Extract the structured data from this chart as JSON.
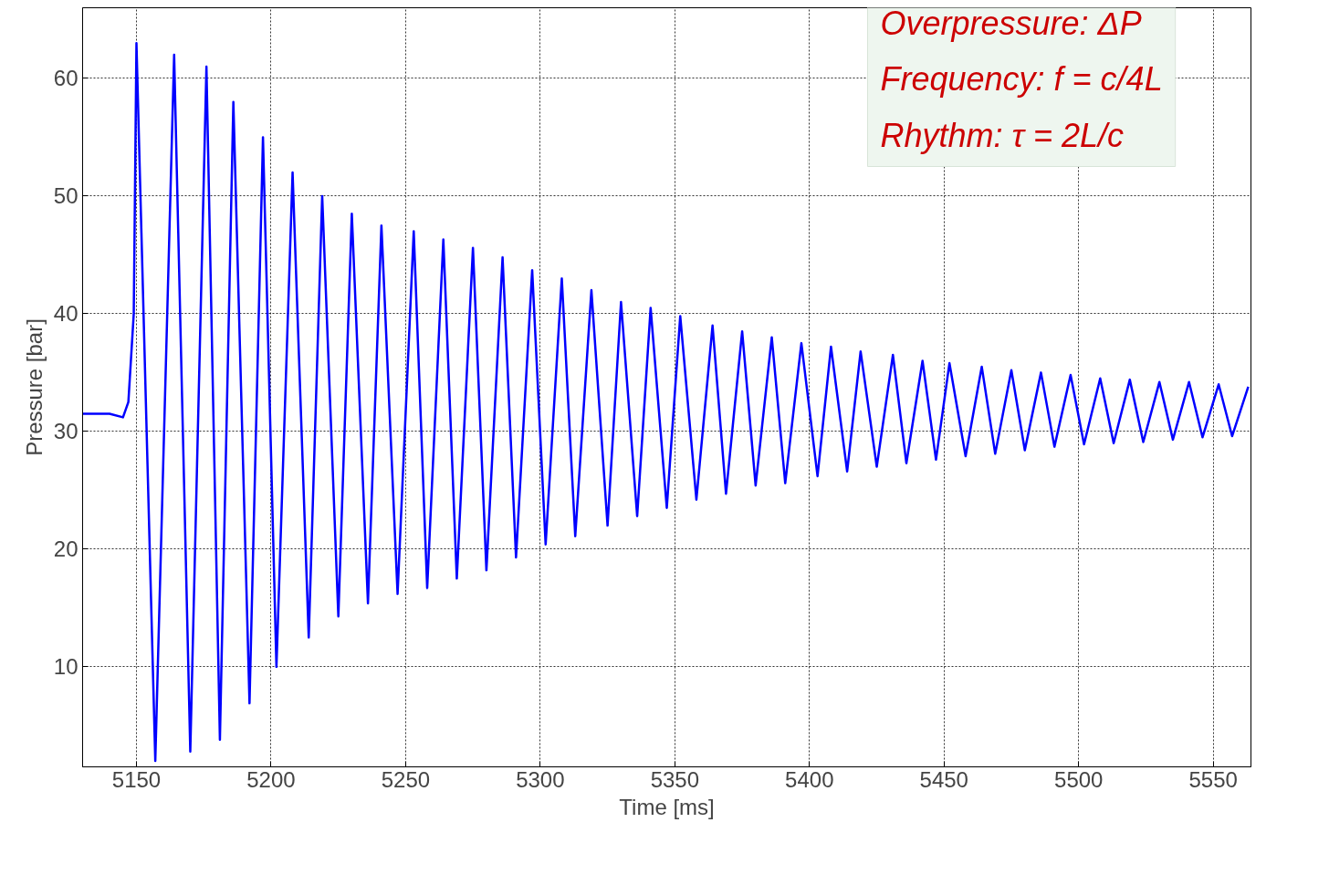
{
  "chart_data": {
    "type": "line",
    "xlabel": "Time [ms]",
    "ylabel": "Pressure [bar]",
    "annotations": [
      "Overpressure: ΔP",
      "Frequency: f = c/4L",
      "Rhythm: τ = 2L/c"
    ],
    "xlim": [
      5130,
      5564
    ],
    "ylim": [
      1.5,
      66
    ],
    "xticks": [
      5150,
      5200,
      5250,
      5300,
      5350,
      5400,
      5450,
      5500,
      5550
    ],
    "yticks": [
      10,
      20,
      30,
      40,
      50,
      60
    ],
    "grid": true,
    "line_style": "solid",
    "series": [
      {
        "color": "#0000ff",
        "x": [
          5130,
          5140,
          5145,
          5147,
          5149,
          5150,
          5157,
          5164,
          5170,
          5176,
          5181,
          5186,
          5192,
          5197,
          5202,
          5208,
          5214,
          5219,
          5225,
          5230,
          5236,
          5241,
          5247,
          5253,
          5258,
          5264,
          5269,
          5275,
          5280,
          5286,
          5291,
          5297,
          5302,
          5308,
          5313,
          5319,
          5325,
          5330,
          5336,
          5341,
          5347,
          5352,
          5358,
          5364,
          5369,
          5375,
          5380,
          5386,
          5391,
          5397,
          5403,
          5408,
          5414,
          5419,
          5425,
          5431,
          5436,
          5442,
          5447,
          5452,
          5458,
          5464,
          5469,
          5475,
          5480,
          5486,
          5491,
          5497,
          5502,
          5508,
          5513,
          5519,
          5524,
          5530,
          5535,
          5541,
          5546,
          5552,
          5557,
          5563
        ],
        "values": [
          31.5,
          31.5,
          31.2,
          32.5,
          40,
          63,
          2.0,
          62,
          2.8,
          61,
          3.8,
          58,
          6.9,
          55,
          10,
          52,
          12.5,
          50,
          14.3,
          48.5,
          15.4,
          47.5,
          16.2,
          47,
          16.7,
          46.3,
          17.5,
          45.6,
          18.2,
          44.8,
          19.3,
          43.7,
          20.4,
          43,
          21.1,
          42,
          22,
          41,
          22.8,
          40.5,
          23.5,
          39.8,
          24.2,
          39,
          24.7,
          38.5,
          25.4,
          38,
          25.6,
          37.5,
          26.2,
          37.2,
          26.6,
          36.8,
          27,
          36.5,
          27.3,
          36,
          27.6,
          35.8,
          27.9,
          35.5,
          28.1,
          35.2,
          28.4,
          35,
          28.7,
          34.8,
          28.9,
          34.5,
          29,
          34.4,
          29.1,
          34.2,
          29.3,
          34.2,
          29.5,
          34,
          29.6,
          33.8
        ]
      }
    ]
  }
}
